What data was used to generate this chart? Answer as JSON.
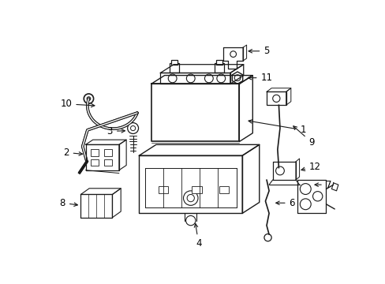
{
  "background_color": "#ffffff",
  "line_color": "#1a1a1a",
  "text_color": "#000000",
  "label_fontsize": 8.5,
  "fig_width": 4.89,
  "fig_height": 3.6,
  "dpi": 100
}
